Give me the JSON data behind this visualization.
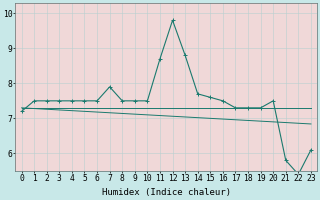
{
  "x": [
    0,
    1,
    2,
    3,
    4,
    5,
    6,
    7,
    8,
    9,
    10,
    11,
    12,
    13,
    14,
    15,
    16,
    17,
    18,
    19,
    20,
    21,
    22,
    23
  ],
  "y_main": [
    7.2,
    7.5,
    7.5,
    7.5,
    7.5,
    7.5,
    7.5,
    7.9,
    7.5,
    7.5,
    7.5,
    8.7,
    9.8,
    8.8,
    7.7,
    7.6,
    7.5,
    7.3,
    7.3,
    7.3,
    7.5,
    5.8,
    5.4,
    6.1
  ],
  "y_trend": [
    7.3,
    7.28,
    7.26,
    7.24,
    7.22,
    7.2,
    7.18,
    7.16,
    7.14,
    7.12,
    7.1,
    7.08,
    7.06,
    7.04,
    7.02,
    7.0,
    6.98,
    6.96,
    6.94,
    6.92,
    6.9,
    6.88,
    6.86,
    6.84
  ],
  "y_flat": [
    7.3,
    7.3,
    7.3,
    7.3,
    7.3,
    7.3,
    7.3,
    7.3,
    7.3,
    7.3,
    7.3,
    7.3,
    7.3,
    7.3,
    7.3,
    7.3,
    7.3,
    7.3,
    7.3,
    7.3,
    7.3,
    7.3,
    7.3,
    7.3
  ],
  "line_color": "#1a7a6e",
  "bg_color": "#c8e8e8",
  "axis_bg": "#f0d8d8",
  "grid_color": "#b8d0d0",
  "ylim": [
    5.5,
    10.3
  ],
  "yticks": [
    6,
    7,
    8,
    9,
    10
  ],
  "xlabel": "Humidex (Indice chaleur)",
  "xlabel_fontsize": 6.5,
  "tick_fontsize": 5.8
}
